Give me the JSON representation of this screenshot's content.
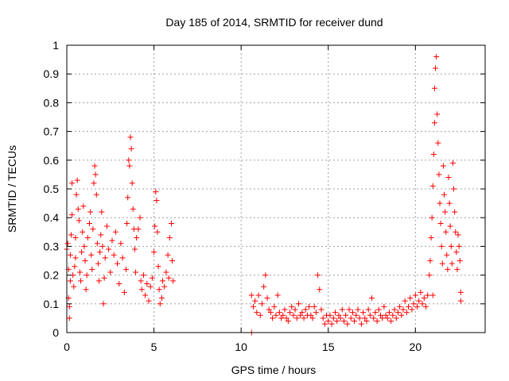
{
  "chart_data": {
    "type": "scatter",
    "title": "Day 185 of 2014, SRMTID for receiver dund",
    "xlabel": "GPS time / hours",
    "ylabel": "SRMTID / TECUs",
    "xlim": [
      0,
      24
    ],
    "ylim": [
      0,
      1
    ],
    "grid": true,
    "x_ticks": [
      0,
      5,
      10,
      15,
      20
    ],
    "x_tick_labels": [
      "0",
      "5",
      "10",
      "15",
      "20"
    ],
    "y_ticks": [
      0,
      0.1,
      0.2,
      0.3,
      0.4,
      0.5,
      0.6,
      0.7,
      0.8,
      0.9,
      1
    ],
    "y_tick_labels": [
      "0",
      "0.1",
      "0.2",
      "0.3",
      "0.4",
      "0.5",
      "0.6",
      "0.7",
      "0.8",
      "0.9",
      "1"
    ],
    "marker": "+",
    "color": "#ff0000",
    "series": [
      {
        "name": "SRMTID",
        "points": [
          [
            0.0,
            0.29
          ],
          [
            0.05,
            0.31
          ],
          [
            0.1,
            0.22
          ],
          [
            0.1,
            0.12
          ],
          [
            0.15,
            0.05
          ],
          [
            0.15,
            0.09
          ],
          [
            0.2,
            0.18
          ],
          [
            0.2,
            0.27
          ],
          [
            0.25,
            0.34
          ],
          [
            0.3,
            0.52
          ],
          [
            0.3,
            0.41
          ],
          [
            0.35,
            0.2
          ],
          [
            0.4,
            0.16
          ],
          [
            0.45,
            0.23
          ],
          [
            0.5,
            0.26
          ],
          [
            0.5,
            0.33
          ],
          [
            0.55,
            0.48
          ],
          [
            0.6,
            0.53
          ],
          [
            0.65,
            0.43
          ],
          [
            0.7,
            0.39
          ],
          [
            0.75,
            0.21
          ],
          [
            0.8,
            0.18
          ],
          [
            0.85,
            0.28
          ],
          [
            0.9,
            0.35
          ],
          [
            0.95,
            0.44
          ],
          [
            1.0,
            0.3
          ],
          [
            1.05,
            0.25
          ],
          [
            1.1,
            0.15
          ],
          [
            1.15,
            0.2
          ],
          [
            1.2,
            0.33
          ],
          [
            1.3,
            0.38
          ],
          [
            1.35,
            0.42
          ],
          [
            1.4,
            0.27
          ],
          [
            1.45,
            0.22
          ],
          [
            1.5,
            0.36
          ],
          [
            1.55,
            0.52
          ],
          [
            1.6,
            0.58
          ],
          [
            1.65,
            0.55
          ],
          [
            1.7,
            0.48
          ],
          [
            1.75,
            0.31
          ],
          [
            1.8,
            0.24
          ],
          [
            1.85,
            0.18
          ],
          [
            1.9,
            0.28
          ],
          [
            1.95,
            0.34
          ],
          [
            2.0,
            0.42
          ],
          [
            2.05,
            0.3
          ],
          [
            2.1,
            0.1
          ],
          [
            2.15,
            0.19
          ],
          [
            2.2,
            0.26
          ],
          [
            2.3,
            0.37
          ],
          [
            2.4,
            0.29
          ],
          [
            2.5,
            0.21
          ],
          [
            2.6,
            0.32
          ],
          [
            2.7,
            0.27
          ],
          [
            2.8,
            0.35
          ],
          [
            2.9,
            0.24
          ],
          [
            3.0,
            0.17
          ],
          [
            3.1,
            0.31
          ],
          [
            3.2,
            0.26
          ],
          [
            3.3,
            0.14
          ],
          [
            3.4,
            0.22
          ],
          [
            3.45,
            0.38
          ],
          [
            3.5,
            0.47
          ],
          [
            3.55,
            0.6
          ],
          [
            3.6,
            0.58
          ],
          [
            3.65,
            0.68
          ],
          [
            3.7,
            0.64
          ],
          [
            3.75,
            0.52
          ],
          [
            3.8,
            0.43
          ],
          [
            3.85,
            0.36
          ],
          [
            3.9,
            0.29
          ],
          [
            3.95,
            0.21
          ],
          [
            4.0,
            0.33
          ],
          [
            4.1,
            0.36
          ],
          [
            4.2,
            0.4
          ],
          [
            4.25,
            0.18
          ],
          [
            4.3,
            0.15
          ],
          [
            4.4,
            0.2
          ],
          [
            4.5,
            0.13
          ],
          [
            4.6,
            0.17
          ],
          [
            4.7,
            0.11
          ],
          [
            4.8,
            0.16
          ],
          [
            4.9,
            0.19
          ],
          [
            5.0,
            0.28
          ],
          [
            5.05,
            0.37
          ],
          [
            5.1,
            0.49
          ],
          [
            5.15,
            0.46
          ],
          [
            5.2,
            0.35
          ],
          [
            5.25,
            0.23
          ],
          [
            5.3,
            0.15
          ],
          [
            5.35,
            0.1
          ],
          [
            5.45,
            0.12
          ],
          [
            5.5,
            0.18
          ],
          [
            5.6,
            0.16
          ],
          [
            5.7,
            0.21
          ],
          [
            5.8,
            0.27
          ],
          [
            5.85,
            0.19
          ],
          [
            5.9,
            0.33
          ],
          [
            6.0,
            0.38
          ],
          [
            6.05,
            0.25
          ],
          [
            6.1,
            0.18
          ],
          [
            10.6,
            0.0
          ],
          [
            10.6,
            0.13
          ],
          [
            10.7,
            0.09
          ],
          [
            10.8,
            0.11
          ],
          [
            10.9,
            0.07
          ],
          [
            11.0,
            0.13
          ],
          [
            11.1,
            0.06
          ],
          [
            11.2,
            0.1
          ],
          [
            11.3,
            0.16
          ],
          [
            11.4,
            0.2
          ],
          [
            11.5,
            0.12
          ],
          [
            11.6,
            0.08
          ],
          [
            11.7,
            0.07
          ],
          [
            11.8,
            0.05
          ],
          [
            11.9,
            0.09
          ],
          [
            12.0,
            0.06
          ],
          [
            12.1,
            0.13
          ],
          [
            12.2,
            0.07
          ],
          [
            12.3,
            0.05
          ],
          [
            12.4,
            0.06
          ],
          [
            12.5,
            0.08
          ],
          [
            12.6,
            0.05
          ],
          [
            12.7,
            0.04
          ],
          [
            12.8,
            0.07
          ],
          [
            12.9,
            0.09
          ],
          [
            13.0,
            0.06
          ],
          [
            13.1,
            0.08
          ],
          [
            13.2,
            0.05
          ],
          [
            13.3,
            0.1
          ],
          [
            13.4,
            0.06
          ],
          [
            13.5,
            0.07
          ],
          [
            13.6,
            0.05
          ],
          [
            13.7,
            0.08
          ],
          [
            13.8,
            0.06
          ],
          [
            13.9,
            0.09
          ],
          [
            14.0,
            0.06
          ],
          [
            14.1,
            0.05
          ],
          [
            14.2,
            0.09
          ],
          [
            14.3,
            0.07
          ],
          [
            14.4,
            0.2
          ],
          [
            14.5,
            0.15
          ],
          [
            14.6,
            0.08
          ],
          [
            14.7,
            0.05
          ],
          [
            14.8,
            0.03
          ],
          [
            14.9,
            0.06
          ],
          [
            15.0,
            0.04
          ],
          [
            15.1,
            0.06
          ],
          [
            15.2,
            0.03
          ],
          [
            15.3,
            0.05
          ],
          [
            15.4,
            0.07
          ],
          [
            15.5,
            0.04
          ],
          [
            15.6,
            0.06
          ],
          [
            15.7,
            0.05
          ],
          [
            15.8,
            0.08
          ],
          [
            15.9,
            0.04
          ],
          [
            16.0,
            0.06
          ],
          [
            16.1,
            0.03
          ],
          [
            16.2,
            0.08
          ],
          [
            16.3,
            0.05
          ],
          [
            16.4,
            0.07
          ],
          [
            16.5,
            0.04
          ],
          [
            16.6,
            0.06
          ],
          [
            16.7,
            0.08
          ],
          [
            16.8,
            0.05
          ],
          [
            16.9,
            0.03
          ],
          [
            17.0,
            0.07
          ],
          [
            17.1,
            0.05
          ],
          [
            17.2,
            0.04
          ],
          [
            17.3,
            0.08
          ],
          [
            17.4,
            0.06
          ],
          [
            17.5,
            0.12
          ],
          [
            17.6,
            0.05
          ],
          [
            17.7,
            0.07
          ],
          [
            17.8,
            0.04
          ],
          [
            17.9,
            0.08
          ],
          [
            18.0,
            0.06
          ],
          [
            18.1,
            0.05
          ],
          [
            18.2,
            0.09
          ],
          [
            18.3,
            0.06
          ],
          [
            18.4,
            0.05
          ],
          [
            18.5,
            0.07
          ],
          [
            18.6,
            0.04
          ],
          [
            18.7,
            0.06
          ],
          [
            18.8,
            0.08
          ],
          [
            18.9,
            0.05
          ],
          [
            19.0,
            0.07
          ],
          [
            19.1,
            0.09
          ],
          [
            19.2,
            0.06
          ],
          [
            19.3,
            0.08
          ],
          [
            19.4,
            0.11
          ],
          [
            19.5,
            0.07
          ],
          [
            19.6,
            0.09
          ],
          [
            19.7,
            0.12
          ],
          [
            19.8,
            0.08
          ],
          [
            19.9,
            0.1
          ],
          [
            20.0,
            0.13
          ],
          [
            20.1,
            0.09
          ],
          [
            20.2,
            0.11
          ],
          [
            20.3,
            0.14
          ],
          [
            20.4,
            0.1
          ],
          [
            20.5,
            0.12
          ],
          [
            20.6,
            0.09
          ],
          [
            20.7,
            0.13
          ],
          [
            20.8,
            0.2
          ],
          [
            20.85,
            0.25
          ],
          [
            20.9,
            0.33
          ],
          [
            20.95,
            0.4
          ],
          [
            21.0,
            0.51
          ],
          [
            21.0,
            0.13
          ],
          [
            21.05,
            0.62
          ],
          [
            21.1,
            0.73
          ],
          [
            21.1,
            0.85
          ],
          [
            21.15,
            0.92
          ],
          [
            21.2,
            0.96
          ],
          [
            21.25,
            0.76
          ],
          [
            21.3,
            0.66
          ],
          [
            21.35,
            0.55
          ],
          [
            21.4,
            0.45
          ],
          [
            21.45,
            0.38
          ],
          [
            21.5,
            0.3
          ],
          [
            21.55,
            0.24
          ],
          [
            21.6,
            0.58
          ],
          [
            21.65,
            0.48
          ],
          [
            21.7,
            0.42
          ],
          [
            21.75,
            0.35
          ],
          [
            21.8,
            0.27
          ],
          [
            21.85,
            0.22
          ],
          [
            21.9,
            0.54
          ],
          [
            21.95,
            0.45
          ],
          [
            22.0,
            0.37
          ],
          [
            22.05,
            0.3
          ],
          [
            22.1,
            0.24
          ],
          [
            22.15,
            0.59
          ],
          [
            22.2,
            0.5
          ],
          [
            22.25,
            0.42
          ],
          [
            22.3,
            0.35
          ],
          [
            22.35,
            0.28
          ],
          [
            22.4,
            0.22
          ],
          [
            22.45,
            0.34
          ],
          [
            22.5,
            0.3
          ],
          [
            22.55,
            0.25
          ],
          [
            22.6,
            0.14
          ],
          [
            22.6,
            0.11
          ]
        ]
      }
    ]
  }
}
